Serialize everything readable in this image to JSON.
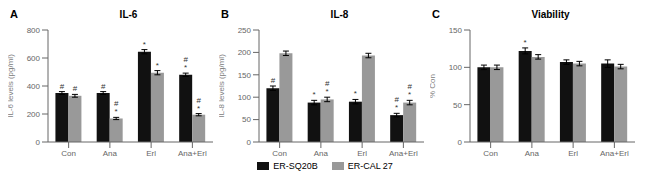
{
  "chart_data": [
    {
      "type": "bar",
      "label": "A",
      "title": "IL-6",
      "ylabel": "IL-6 levels (pg/ml)",
      "categories": [
        "Con",
        "Ana",
        "Erl",
        "Ana+Erl"
      ],
      "series": [
        {
          "name": "ER-SQ20B",
          "color": "#111111",
          "values": [
            350,
            350,
            645,
            480
          ],
          "errors": [
            10,
            10,
            15,
            12
          ],
          "annotations": [
            [
              "#"
            ],
            [
              "#"
            ],
            [
              "*"
            ],
            [
              "*",
              "#"
            ]
          ]
        },
        {
          "name": "ER-CAL 27",
          "color": "#999999",
          "values": [
            330,
            168,
            495,
            195
          ],
          "errors": [
            10,
            8,
            15,
            8
          ],
          "annotations": [
            [
              "#"
            ],
            [
              "*",
              "#"
            ],
            [
              "*"
            ],
            [
              "*",
              "#"
            ]
          ]
        }
      ],
      "ylim": [
        0,
        800
      ],
      "yticks": [
        0,
        200,
        400,
        600,
        800
      ]
    },
    {
      "type": "bar",
      "label": "B",
      "title": "IL-8",
      "ylabel": "IL-8 levels (pg/ml)",
      "categories": [
        "Con",
        "Ana",
        "Erl",
        "Ana+Erl"
      ],
      "series": [
        {
          "name": "ER-SQ20B",
          "color": "#111111",
          "values": [
            120,
            88,
            90,
            60
          ],
          "errors": [
            5,
            5,
            5,
            4
          ],
          "annotations": [
            [
              "#"
            ],
            [
              "*"
            ],
            [
              "*"
            ],
            [
              "*",
              "#"
            ]
          ]
        },
        {
          "name": "ER-CAL 27",
          "color": "#999999",
          "values": [
            198,
            95,
            193,
            88
          ],
          "errors": [
            5,
            5,
            5,
            5
          ],
          "annotations": [
            [],
            [
              "*",
              "#"
            ],
            [],
            [
              "*",
              "#"
            ]
          ]
        }
      ],
      "ylim": [
        0,
        250
      ],
      "yticks": [
        0,
        50,
        100,
        150,
        200,
        250
      ]
    },
    {
      "type": "bar",
      "label": "C",
      "title": "Viability",
      "ylabel": "% Con",
      "categories": [
        "Con",
        "Ana",
        "Erl",
        "Ana+Erl"
      ],
      "series": [
        {
          "name": "ER-SQ20B",
          "color": "#111111",
          "values": [
            100,
            122,
            107,
            105
          ],
          "errors": [
            3,
            4,
            3,
            5
          ],
          "annotations": [
            [],
            [
              "*"
            ],
            [],
            []
          ]
        },
        {
          "name": "ER-CAL 27",
          "color": "#999999",
          "values": [
            100,
            114,
            105,
            101
          ],
          "errors": [
            3,
            3,
            3,
            3
          ],
          "annotations": [
            [],
            [],
            [],
            []
          ]
        }
      ],
      "ylim": [
        0,
        150
      ],
      "yticks": [
        0,
        50,
        100,
        150
      ]
    }
  ]
}
